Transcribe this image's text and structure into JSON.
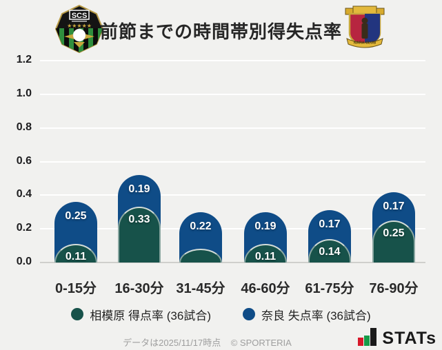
{
  "header": {
    "title": "前節までの時間帯別得失点率",
    "home_logo_icon": "sagamihara-crest-icon",
    "home_logo_text": "SCS",
    "away_logo_icon": "nara-club-crest-icon",
    "away_logo_text": "NARA CLUB"
  },
  "chart_data": {
    "type": "bar",
    "stacked": true,
    "title": "前節までの時間帯別得失点率",
    "categories": [
      "0-15分",
      "16-30分",
      "31-45分",
      "46-60分",
      "61-75分",
      "76-90分"
    ],
    "series": [
      {
        "name": "相模原 得点率 (36試合)",
        "color": "#17524a",
        "values": [
          0.11,
          0.33,
          0.08,
          0.11,
          0.14,
          0.25
        ],
        "labels": [
          "0.11",
          "0.33",
          "",
          "0.11",
          "0.14",
          "0.25"
        ]
      },
      {
        "name": "奈良 失点率 (36試合)",
        "color": "#0f4c87",
        "values": [
          0.25,
          0.19,
          0.22,
          0.19,
          0.17,
          0.17
        ],
        "labels": [
          "0.25",
          "0.19",
          "0.22",
          "0.19",
          "0.17",
          "0.17"
        ]
      }
    ],
    "ylim": [
      0,
      1.2
    ],
    "yticks": [
      "0.0",
      "0.2",
      "0.4",
      "0.6",
      "0.8",
      "1.0",
      "1.2"
    ],
    "grid": true,
    "legend_position": "bottom"
  },
  "legend": {
    "items": [
      {
        "label": "相模原 得点率 (36試合)",
        "color": "#17524a"
      },
      {
        "label": "奈良 失点率 (36試合)",
        "color": "#0f4c87"
      }
    ]
  },
  "footer": {
    "note": "データは2025/11/17時点",
    "copyright": "© SPORTERIA",
    "brand": "STATs",
    "brand_icon": "stats-bars-icon"
  }
}
